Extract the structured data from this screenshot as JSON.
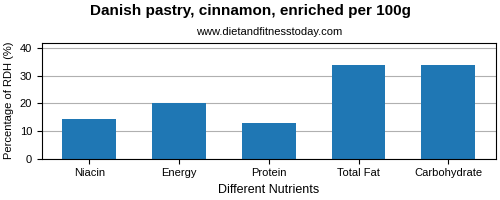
{
  "chart_data": {
    "type": "bar",
    "title": "Danish pastry, cinnamon, enriched per 100g",
    "subtitle": "www.dietandfitnesstoday.com",
    "x_label": "Different Nutrients",
    "y_label": "Percentage of RDH (%)",
    "categories": [
      "Niacin",
      "Energy",
      "Protein",
      "Total Fat",
      "Carbohydrate"
    ],
    "values": [
      14.5,
      20.0,
      13.0,
      34.0,
      34.0
    ],
    "ylim": [
      0,
      42
    ],
    "yticks": [
      0,
      10,
      20,
      30,
      40
    ],
    "grid": true
  }
}
